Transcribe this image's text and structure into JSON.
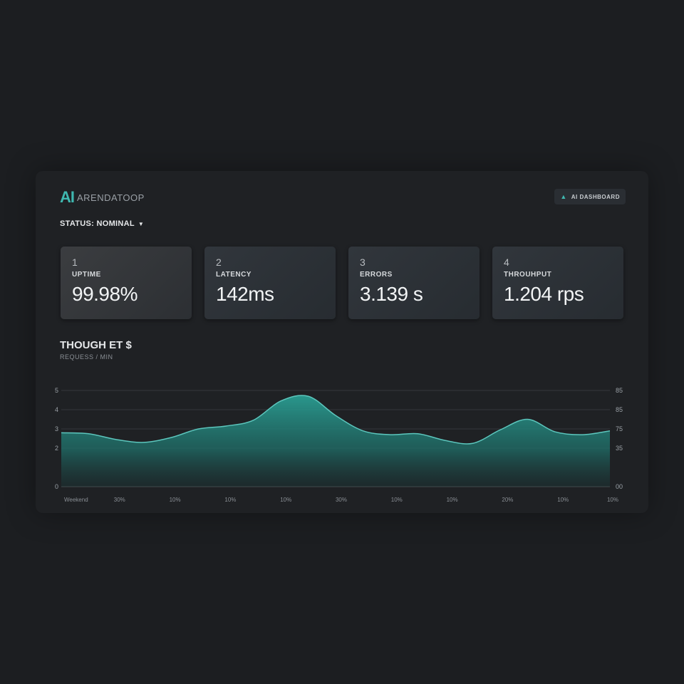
{
  "header": {
    "logo_mark": "AI",
    "app_name": "ARENDATOOP",
    "badge_icon": "layers-icon",
    "badge_label": "AI DASHBOARD"
  },
  "status": {
    "label": "STATUS: NOMINAL"
  },
  "metrics": [
    {
      "index": "1",
      "label": "UPTIME",
      "value": "99.98%"
    },
    {
      "index": "2",
      "label": "LATENCY",
      "value": "142ms"
    },
    {
      "index": "3",
      "label": "ERRORS",
      "value": "3.139 s"
    },
    {
      "index": "4",
      "label": "THROUHPUT",
      "value": "1.204 rps"
    }
  ],
  "chart": {
    "title": "THOUGH ET $",
    "subtitle": "REQUESS / MIN"
  },
  "chart_data": {
    "type": "area",
    "y_left_ticks": [
      "5",
      "4",
      "3",
      "2",
      "0"
    ],
    "y_right_ticks": [
      "85",
      "85",
      "75",
      "35",
      "00"
    ],
    "x_tick_labels": [
      "Weekend",
      "30%",
      "10%",
      "10%",
      "10%",
      "30%",
      "10%",
      "10%",
      "20%",
      "10%",
      "10%"
    ],
    "x": [
      0,
      0.5,
      1,
      1.5,
      2,
      2.5,
      3,
      3.5,
      4,
      4.5,
      5,
      5.5,
      6,
      6.5,
      7,
      7.5,
      8,
      8.5,
      9,
      9.5,
      10
    ],
    "values": [
      2.8,
      2.75,
      2.45,
      2.3,
      2.55,
      3.0,
      3.15,
      3.45,
      4.45,
      4.7,
      3.7,
      2.9,
      2.7,
      2.75,
      2.4,
      2.25,
      2.95,
      3.5,
      2.85,
      2.7,
      2.9
    ],
    "ylim": [
      0,
      5
    ],
    "grid": true,
    "color": "#2a9d92"
  }
}
